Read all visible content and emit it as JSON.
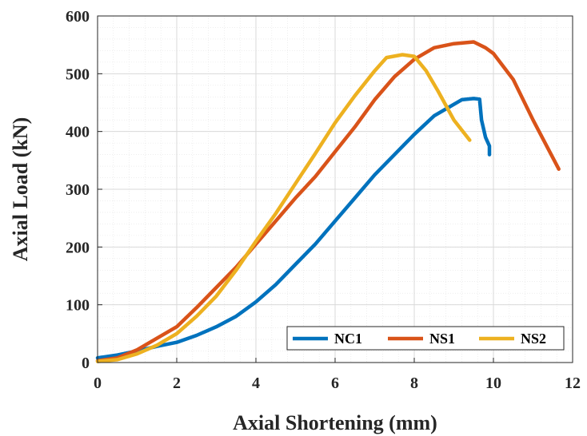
{
  "chart_data": {
    "type": "line",
    "xlabel": "Axial Shortening (mm)",
    "ylabel": "Axial Load (kN)",
    "xlim": [
      0,
      12
    ],
    "ylim": [
      0,
      600
    ],
    "xticks": [
      0,
      2,
      4,
      6,
      8,
      10,
      12
    ],
    "yticks": [
      0,
      100,
      200,
      300,
      400,
      500,
      600
    ],
    "grid": true,
    "minor_grid": true,
    "legend_position": "bottom-right",
    "series": [
      {
        "name": "NC1",
        "color": "#0072BD",
        "x": [
          0,
          0.5,
          1,
          1.5,
          2,
          2.5,
          3,
          3.5,
          4,
          4.5,
          5,
          5.5,
          6,
          6.5,
          7,
          7.5,
          8,
          8.5,
          9,
          9.2,
          9.5,
          9.65,
          9.7,
          9.8,
          9.9,
          9.9
        ],
        "y": [
          8,
          13,
          20,
          28,
          35,
          47,
          62,
          80,
          105,
          135,
          170,
          205,
          245,
          285,
          325,
          360,
          395,
          427,
          447,
          455,
          457,
          456,
          420,
          390,
          375,
          360
        ]
      },
      {
        "name": "NS1",
        "color": "#D95319",
        "x": [
          0,
          0.5,
          1,
          1.5,
          2,
          2.5,
          3,
          3.5,
          4,
          4.5,
          5,
          5.5,
          6,
          6.5,
          7,
          7.5,
          8,
          8.5,
          9,
          9.5,
          9.8,
          10,
          10.5,
          11,
          11.65
        ],
        "y": [
          3,
          8,
          22,
          42,
          62,
          95,
          130,
          165,
          205,
          245,
          285,
          322,
          365,
          408,
          455,
          495,
          525,
          545,
          552,
          555,
          545,
          535,
          490,
          420,
          335
        ]
      },
      {
        "name": "NS2",
        "color": "#EDB120",
        "x": [
          0,
          0.5,
          1,
          1.5,
          2,
          2.5,
          3,
          3.5,
          4,
          4.5,
          5,
          5.5,
          6,
          6.5,
          7,
          7.3,
          7.7,
          8,
          8.3,
          8.6,
          9,
          9.4
        ],
        "y": [
          2,
          5,
          15,
          30,
          50,
          80,
          115,
          160,
          210,
          258,
          310,
          362,
          415,
          462,
          505,
          528,
          533,
          530,
          505,
          470,
          420,
          385
        ]
      }
    ]
  }
}
